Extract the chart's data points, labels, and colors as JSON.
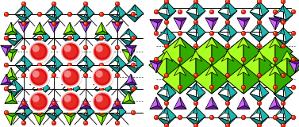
{
  "figure_width": 3.77,
  "figure_height": 1.6,
  "dpi": 100,
  "background_color": "#ffffff",
  "colors": {
    "teal_light": "#40d8d0",
    "teal_mid": "#20b5ad",
    "teal_dark": "#108880",
    "green_light": "#aaff22",
    "green_mid": "#66dd00",
    "green_dark": "#33aa00",
    "purple_light": "#cc66ff",
    "purple_mid": "#9933cc",
    "purple_dark": "#661199",
    "red_sphere": "#dd1111",
    "red_highlight": "#ff6655",
    "red_shadow": "#991100",
    "small_red": "#ee2200",
    "black": "#000000",
    "white": "#ffffff"
  }
}
